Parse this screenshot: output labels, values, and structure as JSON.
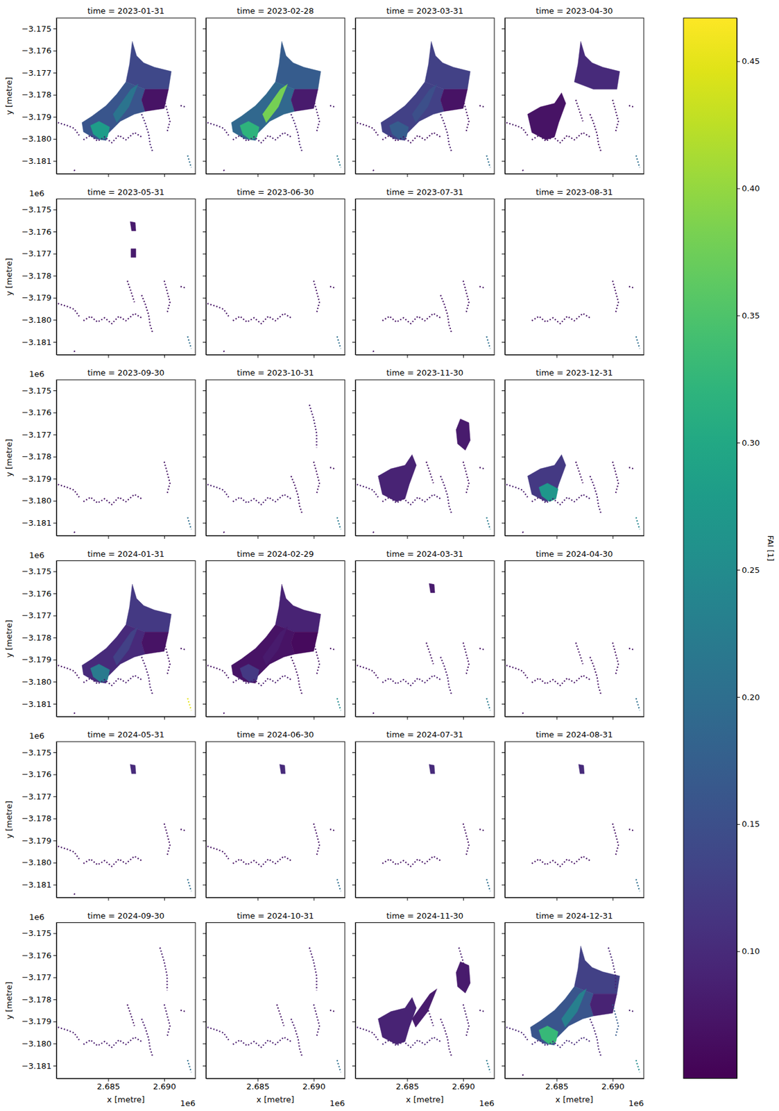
{
  "chart_data": {
    "type": "heatmap",
    "x_label": "x [metre]",
    "y_label": "y [metre]",
    "x_offset": "1e6",
    "y_offset": "1e6",
    "xlim": [
      2680380,
      2692780
    ],
    "ylim": [
      -3181580,
      -3174520
    ],
    "xticks": [
      {
        "value": 2685000,
        "label": "2.685"
      },
      {
        "value": 2690000,
        "label": "2.690"
      }
    ],
    "yticks": [
      {
        "value": -3175000,
        "label": "−3.175"
      },
      {
        "value": -3176000,
        "label": "−3.176"
      },
      {
        "value": -3177000,
        "label": "−3.177"
      },
      {
        "value": -3178000,
        "label": "−3.178"
      },
      {
        "value": -3179000,
        "label": "−3.179"
      },
      {
        "value": -3180000,
        "label": "−3.180"
      },
      {
        "value": -3181000,
        "label": "−3.181"
      }
    ],
    "colorbar": {
      "label": "FAI [1]",
      "range": [
        0.05,
        0.467
      ],
      "ticks": [
        {
          "value": 0.1,
          "label": "0.10"
        },
        {
          "value": 0.15,
          "label": "0.15"
        },
        {
          "value": 0.2,
          "label": "0.20"
        },
        {
          "value": 0.25,
          "label": "0.25"
        },
        {
          "value": 0.3,
          "label": "0.30"
        },
        {
          "value": 0.35,
          "label": "0.35"
        },
        {
          "value": 0.4,
          "label": "0.40"
        },
        {
          "value": 0.45,
          "label": "0.45"
        }
      ]
    },
    "zones": [
      [
        [
          2687150,
          -3175580
        ],
        [
          2687530,
          -3176230
        ],
        [
          2688170,
          -3176550
        ],
        [
          2689120,
          -3176750
        ],
        [
          2690630,
          -3176940
        ],
        [
          2690380,
          -3177750
        ],
        [
          2688290,
          -3177750
        ],
        [
          2686580,
          -3177420
        ],
        [
          2686900,
          -3176620
        ]
      ],
      [
        [
          2686580,
          -3177420
        ],
        [
          2688290,
          -3177750
        ],
        [
          2687980,
          -3178230
        ],
        [
          2688290,
          -3178750
        ],
        [
          2687340,
          -3178880
        ],
        [
          2686080,
          -3179200
        ],
        [
          2684940,
          -3179780
        ],
        [
          2684810,
          -3180070
        ],
        [
          2683860,
          -3180000
        ],
        [
          2682790,
          -3179680
        ],
        [
          2682660,
          -3179260
        ],
        [
          2683550,
          -3178970
        ],
        [
          2684810,
          -3178490
        ],
        [
          2685760,
          -3177970
        ]
      ],
      [
        [
          2688290,
          -3177750
        ],
        [
          2690380,
          -3177750
        ],
        [
          2690000,
          -3178620
        ],
        [
          2688290,
          -3178750
        ],
        [
          2687980,
          -3178230
        ]
      ],
      [
        [
          2682410,
          -3178880
        ],
        [
          2683550,
          -3178550
        ],
        [
          2684810,
          -3178390
        ],
        [
          2685440,
          -3177910
        ],
        [
          2685820,
          -3178390
        ],
        [
          2685190,
          -3179260
        ],
        [
          2684810,
          -3179910
        ],
        [
          2684050,
          -3180040
        ],
        [
          2682790,
          -3179710
        ]
      ],
      [
        [
          2684180,
          -3179200
        ],
        [
          2685130,
          -3179460
        ],
        [
          2684940,
          -3179910
        ],
        [
          2684370,
          -3180040
        ],
        [
          2683670,
          -3179780
        ],
        [
          2683420,
          -3179390
        ]
      ],
      [
        [
          2685440,
          -3178880
        ],
        [
          2687030,
          -3177750
        ],
        [
          2687660,
          -3177520
        ],
        [
          2686840,
          -3178550
        ],
        [
          2685760,
          -3179260
        ]
      ],
      [
        [
          2686960,
          -3175550
        ],
        [
          2687410,
          -3175590
        ],
        [
          2687470,
          -3175970
        ],
        [
          2687090,
          -3175970
        ]
      ],
      [
        [
          2689750,
          -3176290
        ],
        [
          2690510,
          -3176460
        ],
        [
          2690630,
          -3177260
        ],
        [
          2690190,
          -3177710
        ],
        [
          2689500,
          -3177420
        ],
        [
          2689370,
          -3176780
        ]
      ],
      [
        [
          2687030,
          -3176780
        ],
        [
          2687470,
          -3176780
        ],
        [
          2687470,
          -3177170
        ],
        [
          2687030,
          -3177170
        ]
      ]
    ],
    "channels": [
      [
        [
          2680510,
          -3179260
        ],
        [
          2681330,
          -3179390
        ],
        [
          2681960,
          -3179520
        ],
        [
          2682410,
          -3179840
        ]
      ],
      [
        [
          2682790,
          -3180040
        ],
        [
          2683420,
          -3179840
        ],
        [
          2684050,
          -3180100
        ],
        [
          2684680,
          -3179910
        ],
        [
          2685320,
          -3180170
        ],
        [
          2685950,
          -3179840
        ],
        [
          2686580,
          -3180040
        ],
        [
          2687340,
          -3179710
        ],
        [
          2687980,
          -3179910
        ]
      ],
      [
        [
          2687980,
          -3178880
        ],
        [
          2688290,
          -3179260
        ],
        [
          2688610,
          -3179780
        ],
        [
          2688740,
          -3180230
        ],
        [
          2688990,
          -3180620
        ]
      ],
      [
        [
          2690000,
          -3178230
        ],
        [
          2690260,
          -3178710
        ],
        [
          2690510,
          -3179200
        ],
        [
          2690260,
          -3179680
        ]
      ],
      [
        [
          2691460,
          -3178490
        ],
        [
          2691900,
          -3178550
        ]
      ],
      [
        [
          2692090,
          -3180750
        ],
        [
          2692410,
          -3181300
        ]
      ],
      [
        [
          2681960,
          -3181400
        ],
        [
          2682090,
          -3181500
        ]
      ],
      [
        [
          2686710,
          -3178230
        ],
        [
          2687030,
          -3178710
        ],
        [
          2687340,
          -3179200
        ]
      ],
      [
        [
          2689620,
          -3175650
        ],
        [
          2690000,
          -3176290
        ],
        [
          2690260,
          -3176940
        ],
        [
          2690260,
          -3177590
        ]
      ]
    ],
    "panels": [
      {
        "title": "time = 2023-01-31",
        "zone_values": [
          0.14,
          0.16,
          0.07,
          null,
          0.28,
          0.21,
          null,
          null,
          null
        ],
        "channel_values": [
          0.08,
          0.08,
          0.09,
          0.08,
          0.08,
          0.2,
          0.07,
          null,
          null
        ]
      },
      {
        "title": "time = 2023-02-28",
        "zone_values": [
          0.17,
          0.19,
          0.08,
          null,
          0.32,
          0.38,
          null,
          null,
          null
        ],
        "channel_values": [
          0.08,
          0.08,
          0.09,
          0.08,
          0.08,
          0.22,
          0.07,
          null,
          null
        ]
      },
      {
        "title": "time = 2023-03-31",
        "zone_values": [
          0.13,
          0.13,
          0.07,
          null,
          0.17,
          0.15,
          null,
          null,
          null
        ],
        "channel_values": [
          0.07,
          0.07,
          0.08,
          0.07,
          0.07,
          0.2,
          0.07,
          null,
          null
        ]
      },
      {
        "title": "time = 2023-04-30",
        "zone_values": [
          0.1,
          null,
          null,
          0.07,
          null,
          null,
          null,
          null,
          null
        ],
        "channel_values": [
          0.07,
          0.07,
          0.07,
          0.07,
          0.07,
          0.2,
          0.07,
          0.07,
          null
        ]
      },
      {
        "title": "time = 2023-05-31",
        "zone_values": [
          null,
          null,
          null,
          null,
          null,
          null,
          0.08,
          null,
          0.08
        ],
        "channel_values": [
          0.07,
          0.07,
          0.07,
          0.07,
          0.07,
          0.2,
          0.07,
          0.07,
          null
        ]
      },
      {
        "title": "time = 2023-06-30",
        "zone_values": [
          null,
          null,
          null,
          null,
          null,
          null,
          null,
          null,
          null
        ],
        "channel_values": [
          0.07,
          0.07,
          null,
          0.07,
          0.07,
          0.2,
          0.07,
          null,
          null
        ]
      },
      {
        "title": "time = 2023-07-31",
        "zone_values": [
          null,
          null,
          null,
          null,
          null,
          null,
          null,
          null,
          null
        ],
        "channel_values": [
          null,
          0.07,
          0.07,
          0.07,
          0.07,
          0.2,
          0.07,
          null,
          null
        ]
      },
      {
        "title": "time = 2023-08-31",
        "zone_values": [
          null,
          null,
          null,
          null,
          null,
          null,
          null,
          null,
          null
        ],
        "channel_values": [
          null,
          0.07,
          null,
          0.07,
          0.07,
          0.2,
          null,
          null,
          null
        ]
      },
      {
        "title": "time = 2023-09-30",
        "zone_values": [
          null,
          null,
          null,
          null,
          null,
          null,
          null,
          null,
          null
        ],
        "channel_values": [
          0.07,
          0.07,
          null,
          0.07,
          null,
          0.2,
          0.07,
          null,
          null
        ]
      },
      {
        "title": "time = 2023-10-31",
        "zone_values": [
          null,
          null,
          null,
          null,
          null,
          null,
          null,
          null,
          null
        ],
        "channel_values": [
          0.08,
          0.08,
          0.07,
          0.07,
          0.07,
          0.22,
          0.07,
          null,
          0.08
        ]
      },
      {
        "title": "time = 2023-11-30",
        "zone_values": [
          null,
          null,
          null,
          0.09,
          null,
          null,
          null,
          0.08,
          null
        ],
        "channel_values": [
          0.08,
          0.08,
          0.08,
          0.07,
          0.07,
          0.22,
          0.07,
          0.07,
          null
        ]
      },
      {
        "title": "time = 2023-12-31",
        "zone_values": [
          null,
          null,
          null,
          0.12,
          0.27,
          null,
          null,
          null,
          null
        ],
        "channel_values": [
          0.08,
          0.08,
          0.08,
          0.07,
          0.07,
          0.24,
          0.07,
          0.07,
          null
        ]
      },
      {
        "title": "time = 2024-01-31",
        "zone_values": [
          0.12,
          0.1,
          0.07,
          null,
          0.22,
          0.13,
          null,
          null,
          null
        ],
        "channel_values": [
          0.07,
          0.08,
          0.08,
          0.07,
          0.07,
          0.45,
          0.07,
          null,
          null
        ]
      },
      {
        "title": "time = 2024-02-29",
        "zone_values": [
          0.09,
          0.07,
          0.06,
          null,
          0.12,
          0.08,
          null,
          null,
          null
        ],
        "channel_values": [
          0.07,
          0.08,
          0.07,
          0.07,
          0.07,
          0.25,
          0.07,
          null,
          null
        ]
      },
      {
        "title": "time = 2024-03-31",
        "zone_values": [
          null,
          null,
          null,
          null,
          null,
          null,
          0.08,
          null,
          null
        ],
        "channel_values": [
          0.07,
          0.08,
          0.08,
          0.07,
          0.07,
          0.22,
          0.07,
          0.07,
          null
        ]
      },
      {
        "title": "time = 2024-04-30",
        "zone_values": [
          null,
          null,
          null,
          null,
          null,
          null,
          null,
          null,
          null
        ],
        "channel_values": [
          0.07,
          0.07,
          0.07,
          0.07,
          0.07,
          0.2,
          0.07,
          0.07,
          null
        ]
      },
      {
        "title": "time = 2024-05-31",
        "zone_values": [
          null,
          null,
          null,
          null,
          null,
          null,
          0.1,
          null,
          null
        ],
        "channel_values": [
          0.07,
          0.07,
          null,
          0.07,
          0.07,
          0.2,
          0.07,
          null,
          null
        ]
      },
      {
        "title": "time = 2024-06-30",
        "zone_values": [
          null,
          null,
          null,
          null,
          null,
          null,
          0.1,
          null,
          null
        ],
        "channel_values": [
          0.07,
          0.07,
          null,
          0.07,
          0.07,
          0.2,
          null,
          null,
          null
        ]
      },
      {
        "title": "time = 2024-07-31",
        "zone_values": [
          null,
          null,
          null,
          null,
          null,
          null,
          0.1,
          null,
          null
        ],
        "channel_values": [
          null,
          0.07,
          null,
          0.07,
          0.07,
          0.2,
          null,
          null,
          null
        ]
      },
      {
        "title": "time = 2024-08-31",
        "zone_values": [
          null,
          null,
          null,
          null,
          null,
          null,
          0.1,
          null,
          null
        ],
        "channel_values": [
          null,
          0.07,
          null,
          0.07,
          0.07,
          0.2,
          null,
          null,
          null
        ]
      },
      {
        "title": "time = 2024-09-30",
        "zone_values": [
          null,
          null,
          null,
          null,
          null,
          null,
          null,
          null,
          null
        ],
        "channel_values": [
          0.08,
          0.08,
          0.08,
          0.08,
          0.07,
          0.2,
          null,
          0.07,
          0.08
        ]
      },
      {
        "title": "time = 2024-10-31",
        "zone_values": [
          null,
          null,
          null,
          null,
          null,
          null,
          null,
          null,
          null
        ],
        "channel_values": [
          0.08,
          0.08,
          0.08,
          0.08,
          0.07,
          0.2,
          null,
          0.07,
          0.08
        ]
      },
      {
        "title": "time = 2024-11-30",
        "zone_values": [
          null,
          null,
          null,
          0.09,
          null,
          0.08,
          null,
          0.08,
          null
        ],
        "channel_values": [
          0.08,
          0.09,
          0.08,
          0.08,
          0.08,
          0.22,
          null,
          0.08,
          0.08
        ]
      },
      {
        "title": "time = 2024-12-31",
        "zone_values": [
          0.13,
          0.16,
          0.09,
          null,
          0.33,
          0.23,
          null,
          null,
          null
        ],
        "channel_values": [
          0.09,
          0.1,
          0.09,
          0.17,
          0.08,
          0.25,
          0.07,
          null,
          0.09
        ]
      }
    ]
  }
}
